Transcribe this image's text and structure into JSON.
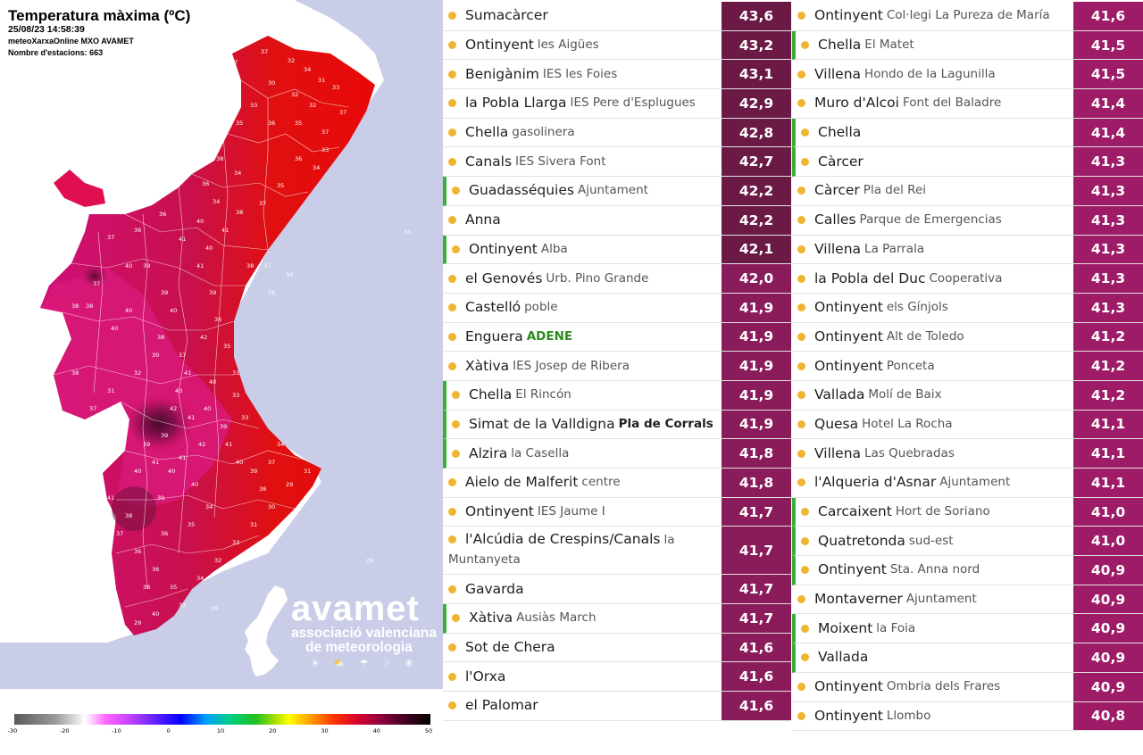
{
  "map": {
    "title": "Temperatura màxima (ºC)",
    "datetime": "25/08/23 14:58:39",
    "source": "meteoXarxaOnline MXO AVAMET",
    "stations_count": "Nombre d'estacions: 663",
    "logo_word": "avamet",
    "logo_line1": "associació valenciana",
    "logo_line2": "de meteorologia",
    "logo_icons": "☀ ⛅ ☂ ☃ ❄",
    "scale_ticks": [
      "-30",
      "-20",
      "-10",
      "0",
      "10",
      "20",
      "30",
      "40",
      "50"
    ],
    "station_values": [
      "35",
      "37",
      "37",
      "32",
      "34",
      "31",
      "33",
      "30",
      "32",
      "32",
      "33",
      "35",
      "36",
      "35",
      "37",
      "37",
      "38",
      "36",
      "34",
      "34",
      "36",
      "36",
      "37",
      "40",
      "37",
      "38",
      "38",
      "40",
      "42",
      "41",
      "43",
      "39",
      "39",
      "41",
      "40",
      "40",
      "41",
      "42",
      "40",
      "39",
      "38",
      "37",
      "36",
      "36",
      "35",
      "33",
      "34",
      "32",
      "33",
      "31",
      "30",
      "29",
      "31",
      "39",
      "40",
      "38",
      "37",
      "42",
      "41",
      "40",
      "40",
      "39",
      "41",
      "40",
      "39",
      "38",
      "37",
      "34",
      "33",
      "33",
      "31",
      "35",
      "36",
      "39",
      "41",
      "40",
      "41",
      "38",
      "37",
      "35",
      "36",
      "34",
      "33",
      "32",
      "30",
      "31",
      "37",
      "38",
      "40",
      "39",
      "41",
      "40",
      "38",
      "37",
      "36",
      "34",
      "33",
      "29",
      "29",
      "29",
      "40",
      "41",
      "39",
      "38",
      "36",
      "35",
      "34"
    ]
  },
  "colors": {
    "bg_land_out": "#ffffff",
    "sea": "#c9cde8",
    "dot": "#f0b530",
    "green_bar": "#38b038",
    "val_dark": "#6b1a45",
    "val_mid": "#8b1c5b",
    "val_light": "#9e1c67"
  },
  "left_rows": [
    {
      "station": "Sumacàrcer",
      "sub": "",
      "value": "43,6",
      "green": false,
      "tone": "dark"
    },
    {
      "station": "Ontinyent",
      "sub": "les Aigües",
      "value": "43,2",
      "green": false,
      "tone": "dark"
    },
    {
      "station": "Benigànim",
      "sub": "IES les Foies",
      "value": "43,1",
      "green": false,
      "tone": "dark"
    },
    {
      "station": "la Pobla Llarga",
      "sub": "IES Pere d'Esplugues",
      "value": "42,9",
      "green": false,
      "tone": "dark"
    },
    {
      "station": "Chella",
      "sub": "gasolinera",
      "value": "42,8",
      "green": false,
      "tone": "dark"
    },
    {
      "station": "Canals",
      "sub": "IES Sivera Font",
      "value": "42,7",
      "green": false,
      "tone": "dark"
    },
    {
      "station": "Guadasséquies",
      "sub": "Ajuntament",
      "value": "42,2",
      "green": true,
      "tone": "dark"
    },
    {
      "station": "Anna",
      "sub": "",
      "value": "42,2",
      "green": false,
      "tone": "dark"
    },
    {
      "station": "Ontinyent",
      "sub": "Alba",
      "value": "42,1",
      "green": true,
      "tone": "dark"
    },
    {
      "station": "el Genovés",
      "sub": "Urb. Pino Grande",
      "value": "42,0",
      "green": false,
      "tone": "mid"
    },
    {
      "station": "Castelló",
      "sub": "poble",
      "value": "41,9",
      "green": false,
      "tone": "mid"
    },
    {
      "station": "Enguera",
      "sub": "ADENE",
      "value": "41,9",
      "green": false,
      "tone": "mid",
      "sub_style": "green"
    },
    {
      "station": "Xàtiva",
      "sub": "IES Josep de Ribera",
      "value": "41,9",
      "green": false,
      "tone": "mid"
    },
    {
      "station": "Chella",
      "sub": "El Rincón",
      "value": "41,9",
      "green": true,
      "tone": "mid"
    },
    {
      "station": "Simat de la Valldigna",
      "sub": "Pla de Corrals",
      "value": "41,9",
      "green": true,
      "tone": "mid",
      "sub_style": "bold"
    },
    {
      "station": "Alzira",
      "sub": "la Casella",
      "value": "41,8",
      "green": true,
      "tone": "mid"
    },
    {
      "station": "Aielo de Malferit",
      "sub": "centre",
      "value": "41,8",
      "green": false,
      "tone": "mid"
    },
    {
      "station": "Ontinyent",
      "sub": "IES Jaume I",
      "value": "41,7",
      "green": false,
      "tone": "mid"
    },
    {
      "station": "l'Alcúdia de Crespins/Canals",
      "sub": "la Muntanyeta",
      "value": "41,7",
      "green": false,
      "tone": "mid",
      "tall": true
    },
    {
      "station": "Gavarda",
      "sub": "",
      "value": "41,7",
      "green": false,
      "tone": "mid"
    },
    {
      "station": "Xàtiva",
      "sub": "Ausiàs March",
      "value": "41,7",
      "green": true,
      "tone": "mid"
    },
    {
      "station": "Sot de Chera",
      "sub": "",
      "value": "41,6",
      "green": false,
      "tone": "mid"
    },
    {
      "station": "l'Orxa",
      "sub": "",
      "value": "41,6",
      "green": false,
      "tone": "mid"
    },
    {
      "station": "el Palomar",
      "sub": "",
      "value": "41,6",
      "green": false,
      "tone": "mid"
    }
  ],
  "right_rows": [
    {
      "station": "Ontinyent",
      "sub": "Col·legi La Pureza de María",
      "value": "41,6",
      "green": false,
      "tone": "light"
    },
    {
      "station": "Chella",
      "sub": "El Matet",
      "value": "41,5",
      "green": true,
      "tone": "light"
    },
    {
      "station": "Villena",
      "sub": "Hondo de la Lagunilla",
      "value": "41,5",
      "green": false,
      "tone": "light"
    },
    {
      "station": "Muro d'Alcoi",
      "sub": "Font del Baladre",
      "value": "41,4",
      "green": false,
      "tone": "light"
    },
    {
      "station": "Chella",
      "sub": "",
      "value": "41,4",
      "green": true,
      "tone": "light"
    },
    {
      "station": "Càrcer",
      "sub": "",
      "value": "41,3",
      "green": true,
      "tone": "light"
    },
    {
      "station": "Càrcer",
      "sub": "Pla del Rei",
      "value": "41,3",
      "green": false,
      "tone": "light"
    },
    {
      "station": "Calles",
      "sub": "Parque de Emergencias",
      "value": "41,3",
      "green": false,
      "tone": "light"
    },
    {
      "station": "Villena",
      "sub": "La Parrala",
      "value": "41,3",
      "green": false,
      "tone": "light"
    },
    {
      "station": "la Pobla del Duc",
      "sub": "Cooperativa",
      "value": "41,3",
      "green": false,
      "tone": "light"
    },
    {
      "station": "Ontinyent",
      "sub": "els Gínjols",
      "value": "41,3",
      "green": false,
      "tone": "light"
    },
    {
      "station": "Ontinyent",
      "sub": "Alt de Toledo",
      "value": "41,2",
      "green": false,
      "tone": "light"
    },
    {
      "station": "Ontinyent",
      "sub": "Ponceta",
      "value": "41,2",
      "green": false,
      "tone": "light"
    },
    {
      "station": "Vallada",
      "sub": "Molí de Baix",
      "value": "41,2",
      "green": false,
      "tone": "light"
    },
    {
      "station": "Quesa",
      "sub": "Hotel La Rocha",
      "value": "41,1",
      "green": false,
      "tone": "light"
    },
    {
      "station": "Villena",
      "sub": "Las Quebradas",
      "value": "41,1",
      "green": false,
      "tone": "light"
    },
    {
      "station": "l'Alqueria d'Asnar",
      "sub": "Ajuntament",
      "value": "41,1",
      "green": false,
      "tone": "light"
    },
    {
      "station": "Carcaixent",
      "sub": "Hort de Soriano",
      "value": "41,0",
      "green": true,
      "tone": "light"
    },
    {
      "station": "Quatretonda",
      "sub": "sud-est",
      "value": "41,0",
      "green": true,
      "tone": "light"
    },
    {
      "station": "Ontinyent",
      "sub": "Sta. Anna nord",
      "value": "40,9",
      "green": true,
      "tone": "light"
    },
    {
      "station": "Montaverner",
      "sub": "Ajuntament",
      "value": "40,9",
      "green": false,
      "tone": "light"
    },
    {
      "station": "Moixent",
      "sub": "la Foia",
      "value": "40,9",
      "green": true,
      "tone": "light"
    },
    {
      "station": "Vallada",
      "sub": "",
      "value": "40,9",
      "green": true,
      "tone": "light"
    },
    {
      "station": "Ontinyent",
      "sub": "Ombria dels Frares",
      "value": "40,9",
      "green": false,
      "tone": "light"
    },
    {
      "station": "Ontinyent",
      "sub": "Llombo",
      "value": "40,8",
      "green": false,
      "tone": "light"
    }
  ]
}
